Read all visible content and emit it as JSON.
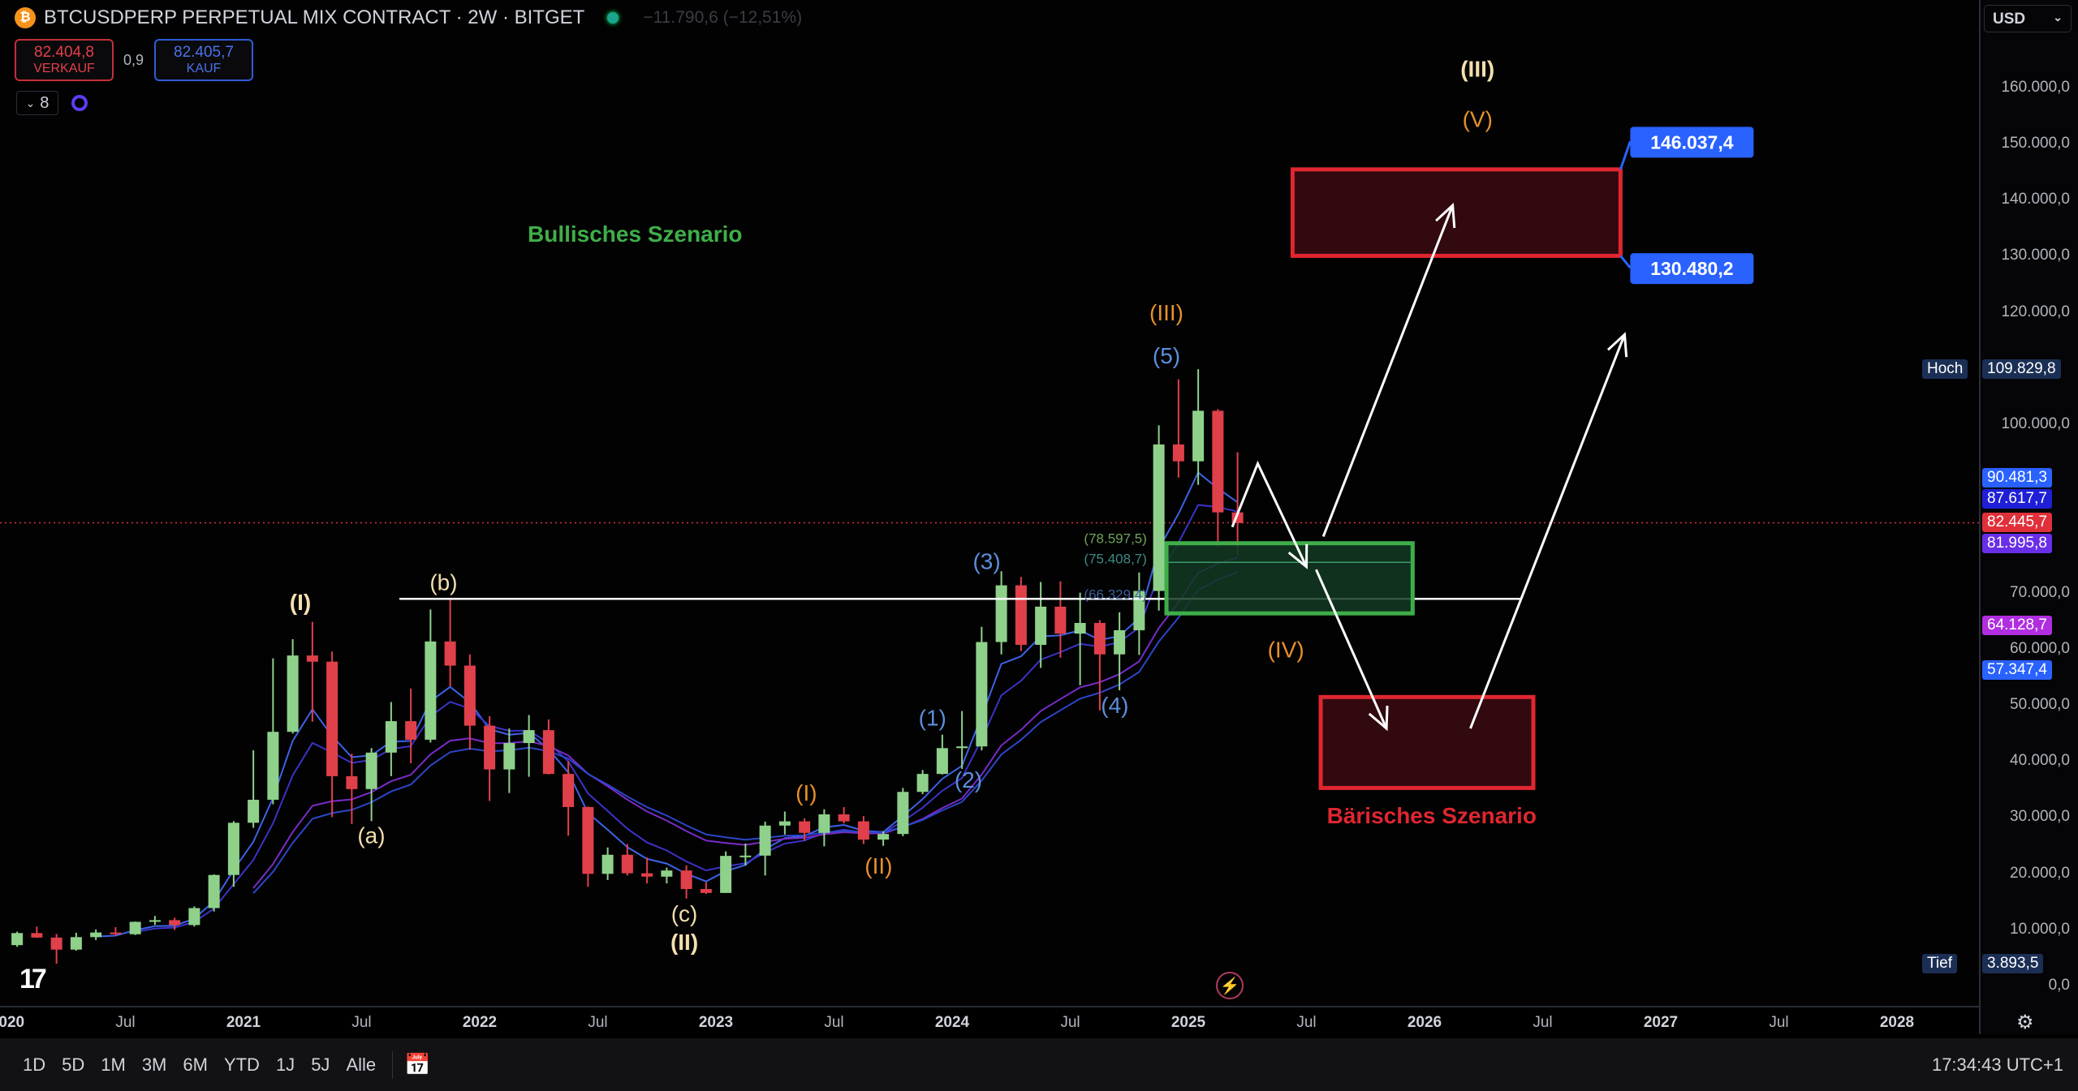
{
  "header": {
    "symbol_icon": "bitcoin-icon",
    "title": "BTCUSDPERP PERPETUAL MIX CONTRACT · 2W · BITGET",
    "change": "−11.790,6 (−12,51%)",
    "sell_price": "82.404,8",
    "sell_label": "VERKAUF",
    "spread": "0,9",
    "buy_price": "82.405,7",
    "buy_label": "KAUF",
    "indicators_count": "8"
  },
  "currency": "USD",
  "bottom": {
    "ranges": [
      "1D",
      "5D",
      "1M",
      "3M",
      "6M",
      "YTD",
      "1J",
      "5J",
      "Alle"
    ],
    "clock": "17:34:43 UTC+1"
  },
  "colors": {
    "up": "#8fd18a",
    "down": "#e0404a",
    "bull": "#3fae49",
    "bear": "#e02630",
    "orange": "#e8902a",
    "cream": "#f3dfae",
    "wave_blue": "#5b8fdc"
  },
  "chart_data": {
    "type": "candlestick",
    "ylim": [
      0,
      160000
    ],
    "xlim": [
      "2020-01",
      "2028-02"
    ],
    "y_ticks": [
      {
        "v": 160000,
        "t": "160.000,0"
      },
      {
        "v": 150000,
        "t": "150.000,0"
      },
      {
        "v": 140000,
        "t": "140.000,0"
      },
      {
        "v": 130000,
        "t": "130.000,0"
      },
      {
        "v": 120000,
        "t": "120.000,0"
      },
      {
        "v": 100000,
        "t": "100.000,0"
      },
      {
        "v": 70000,
        "t": "70.000,0"
      },
      {
        "v": 60000,
        "t": "60.000,0"
      },
      {
        "v": 50000,
        "t": "50.000,0"
      },
      {
        "v": 40000,
        "t": "40.000,0"
      },
      {
        "v": 30000,
        "t": "30.000,0"
      },
      {
        "v": 20000,
        "t": "20.000,0"
      },
      {
        "v": 10000,
        "t": "10.000,0"
      },
      {
        "v": 0,
        "t": "0,0"
      }
    ],
    "x_ticks": [
      {
        "d": "2020-01-01",
        "t": "2020",
        "year": true
      },
      {
        "d": "2020-07-01",
        "t": "Jul"
      },
      {
        "d": "2021-01-01",
        "t": "2021",
        "year": true
      },
      {
        "d": "2021-07-01",
        "t": "Jul"
      },
      {
        "d": "2022-01-01",
        "t": "2022",
        "year": true
      },
      {
        "d": "2022-07-01",
        "t": "Jul"
      },
      {
        "d": "2023-01-01",
        "t": "2023",
        "year": true
      },
      {
        "d": "2023-07-01",
        "t": "Jul"
      },
      {
        "d": "2024-01-01",
        "t": "2024",
        "year": true
      },
      {
        "d": "2024-07-01",
        "t": "Jul"
      },
      {
        "d": "2025-01-01",
        "t": "2025",
        "year": true
      },
      {
        "d": "2025-07-01",
        "t": "Jul"
      },
      {
        "d": "2026-01-01",
        "t": "2026",
        "year": true
      },
      {
        "d": "2026-07-01",
        "t": "Jul"
      },
      {
        "d": "2027-01-01",
        "t": "2027",
        "year": true
      },
      {
        "d": "2027-07-01",
        "t": "Jul"
      },
      {
        "d": "2028-01-01",
        "t": "2028",
        "year": true
      }
    ],
    "price_labels": [
      {
        "v": 109829.8,
        "t": "109.829,8",
        "tag": "Hoch",
        "color": "#1b2f55"
      },
      {
        "v": 90481.3,
        "t": "90.481,3",
        "color": "#2962ff"
      },
      {
        "v": 87617.7,
        "t": "87.617,7",
        "color": "#1f1fd8"
      },
      {
        "v": 82445.7,
        "t": "82.445,7",
        "color": "#e0303a"
      },
      {
        "v": 81995.8,
        "t": "81.995,8",
        "color": "#6a2ee8"
      },
      {
        "v": 64128.7,
        "t": "64.128,7",
        "color": "#b02ee0"
      },
      {
        "v": 57347.4,
        "t": "57.347,4",
        "color": "#2962ff"
      },
      {
        "v": 3893.5,
        "t": "3.893,5",
        "tag": "Tief",
        "color": "#1b2f55"
      }
    ],
    "current_price": 82445.7,
    "candles": [
      [
        "2020-01",
        7200,
        9600,
        6900,
        9350
      ],
      [
        "2020-02",
        9350,
        10500,
        8500,
        8550
      ],
      [
        "2020-03",
        8550,
        9200,
        3900,
        6400
      ],
      [
        "2020-04",
        6400,
        9400,
        6200,
        8630
      ],
      [
        "2020-05",
        8630,
        10000,
        8100,
        9450
      ],
      [
        "2020-06",
        9450,
        10400,
        8900,
        9140
      ],
      [
        "2020-07",
        9140,
        11400,
        9000,
        11350
      ],
      [
        "2020-08",
        11350,
        12400,
        10800,
        11650
      ],
      [
        "2020-09",
        11650,
        12100,
        9900,
        10780
      ],
      [
        "2020-10",
        10780,
        14100,
        10500,
        13800
      ],
      [
        "2020-11",
        13800,
        19800,
        13200,
        19700
      ],
      [
        "2020-12",
        19700,
        29300,
        17600,
        29000
      ],
      [
        "2021-01",
        29000,
        41900,
        28100,
        33100
      ],
      [
        "2021-02",
        33100,
        58300,
        32300,
        45200
      ],
      [
        "2021-03",
        45200,
        61700,
        44900,
        58800
      ],
      [
        "2021-04",
        58800,
        64800,
        47000,
        57700
      ],
      [
        "2021-05",
        57700,
        59500,
        30000,
        37300
      ],
      [
        "2021-06",
        37300,
        41300,
        28800,
        35000
      ],
      [
        "2021-07",
        35000,
        42300,
        29300,
        41500
      ],
      [
        "2021-08",
        41500,
        50500,
        37300,
        47100
      ],
      [
        "2021-09",
        47100,
        52900,
        39600,
        43800
      ],
      [
        "2021-10",
        43800,
        67000,
        43300,
        61300
      ],
      [
        "2021-11",
        61300,
        69000,
        53300,
        57000
      ],
      [
        "2021-12",
        57000,
        59000,
        42000,
        46300
      ],
      [
        "2022-01",
        46300,
        48000,
        32900,
        38500
      ],
      [
        "2022-02",
        38500,
        45800,
        34300,
        43200
      ],
      [
        "2022-03",
        43200,
        48200,
        37200,
        45500
      ],
      [
        "2022-04",
        45500,
        47400,
        37600,
        37700
      ],
      [
        "2022-05",
        37700,
        40000,
        26700,
        31800
      ],
      [
        "2022-06",
        31800,
        31900,
        17600,
        19900
      ],
      [
        "2022-07",
        19900,
        24600,
        18800,
        23300
      ],
      [
        "2022-08",
        23300,
        25200,
        19600,
        20000
      ],
      [
        "2022-09",
        20000,
        22800,
        18200,
        19400
      ],
      [
        "2022-10",
        19400,
        21000,
        18200,
        20500
      ],
      [
        "2022-11",
        20500,
        21400,
        15500,
        17200
      ],
      [
        "2022-12",
        17200,
        18400,
        16300,
        16500
      ],
      [
        "2023-01",
        16500,
        23900,
        16500,
        23100
      ],
      [
        "2023-02",
        23100,
        25300,
        21400,
        23150
      ],
      [
        "2023-03",
        23150,
        29200,
        19600,
        28500
      ],
      [
        "2023-04",
        28500,
        31000,
        26900,
        29250
      ],
      [
        "2023-05",
        29250,
        29800,
        25800,
        27200
      ],
      [
        "2023-06",
        27200,
        31400,
        24800,
        30500
      ],
      [
        "2023-07",
        30500,
        31800,
        28900,
        29250
      ],
      [
        "2023-08",
        29250,
        30200,
        25200,
        26000
      ],
      [
        "2023-09",
        26000,
        27500,
        24900,
        27000
      ],
      [
        "2023-10",
        27000,
        35200,
        26600,
        34500
      ],
      [
        "2023-11",
        34500,
        38400,
        34100,
        37700
      ],
      [
        "2023-12",
        37700,
        44700,
        37600,
        42300
      ],
      [
        "2024-01",
        42300,
        48900,
        38600,
        42600
      ],
      [
        "2024-02",
        42600,
        63900,
        41900,
        61200
      ],
      [
        "2024-03",
        61200,
        73800,
        59000,
        71300
      ],
      [
        "2024-04",
        71300,
        72800,
        59600,
        60700
      ],
      [
        "2024-05",
        60700,
        71900,
        56600,
        67500
      ],
      [
        "2024-06",
        67500,
        72000,
        58400,
        62700
      ],
      [
        "2024-07",
        62700,
        70000,
        53500,
        64600
      ],
      [
        "2024-08",
        64600,
        65100,
        49000,
        59000
      ],
      [
        "2024-09",
        59000,
        66500,
        52600,
        63300
      ],
      [
        "2024-10",
        63300,
        73600,
        58900,
        70300
      ],
      [
        "2024-11",
        70300,
        99800,
        66800,
        96400
      ],
      [
        "2024-12",
        96400,
        108000,
        90500,
        93400
      ],
      [
        "2025-01",
        93400,
        109800,
        89200,
        102400
      ],
      [
        "2025-02",
        102400,
        102700,
        78200,
        84300
      ],
      [
        "2025-03",
        84300,
        95000,
        76600,
        82400
      ]
    ],
    "moving_averages": [
      {
        "periods": 4,
        "color": "#3d62e6"
      },
      {
        "periods": 6,
        "color": "#3b33c8"
      },
      {
        "periods": 12,
        "color": "#7a2bc8"
      },
      {
        "periods": 14,
        "color": "#2c46c8"
      }
    ],
    "hline": {
      "value": 68900,
      "from": "2021-08-29",
      "to": "2026-05-27",
      "color": "#ffffff"
    },
    "zones": [
      {
        "from": "2025-06-10",
        "to": "2026-10-30",
        "top": 145400,
        "bottom": 130000,
        "color": "#e02630",
        "fill": "#3a0a12",
        "labels": [
          {
            "text": "146.037,4",
            "v": 146037.4
          },
          {
            "text": "130.480,2",
            "v": 130480.2
          }
        ]
      },
      {
        "from": "2024-11-28",
        "to": "2025-12-13",
        "top": 78800,
        "bottom": 66300,
        "mid": 75400,
        "color": "#3fae49",
        "fill": "#123a22"
      },
      {
        "from": "2025-07-23",
        "to": "2026-06-17",
        "top": 51400,
        "bottom": 35200,
        "color": "#e02630",
        "fill": "#3a0a12"
      }
    ],
    "arrows": [
      [
        [
          "2025-03-08",
          81700
        ],
        [
          "2025-04-17",
          93000
        ],
        [
          "2025-07-01",
          74600
        ]
      ],
      [
        [
          "2025-07-27",
          80000
        ],
        [
          "2026-02-14",
          139000
        ]
      ],
      [
        [
          "2025-07-16",
          74100
        ],
        [
          "2025-11-03",
          45800
        ]
      ],
      [
        [
          "2026-03-11",
          45800
        ],
        [
          "2026-11-06",
          116000
        ]
      ]
    ],
    "annotations": [
      {
        "text": "(I)",
        "d": "2021-03-28",
        "v": 68000,
        "c": "cream",
        "bold": true
      },
      {
        "text": "(b)",
        "d": "2021-11-06",
        "v": 71500,
        "c": "cream"
      },
      {
        "text": "(a)",
        "d": "2021-07-16",
        "v": 26400,
        "c": "cream"
      },
      {
        "text": "(c)",
        "d": "2022-11-13",
        "v": 12500,
        "c": "cream"
      },
      {
        "text": "(II)",
        "d": "2022-11-13",
        "v": 8000,
        "c": "cream",
        "bold": true
      },
      {
        "text": "(I)",
        "d": "2023-05-19",
        "v": 34000,
        "c": "orange"
      },
      {
        "text": "(II)",
        "d": "2023-09-09",
        "v": 21000,
        "c": "orange"
      },
      {
        "text": "(1)",
        "d": "2023-12-01",
        "v": 47400,
        "c": "wave_blue"
      },
      {
        "text": "(2)",
        "d": "2024-01-26",
        "v": 36300,
        "c": "wave_blue"
      },
      {
        "text": "(3)",
        "d": "2024-02-24",
        "v": 75300,
        "c": "wave_blue"
      },
      {
        "text": "(4)",
        "d": "2024-09-09",
        "v": 49600,
        "c": "wave_blue"
      },
      {
        "text": "(5)",
        "d": "2024-11-28",
        "v": 111900,
        "c": "wave_blue"
      },
      {
        "text": "(III)",
        "d": "2024-11-28",
        "v": 119600,
        "c": "orange"
      },
      {
        "text": "(IV)",
        "d": "2025-05-30",
        "v": 59500,
        "c": "orange"
      },
      {
        "text": "(III)",
        "d": "2026-03-22",
        "v": 163000,
        "c": "cream",
        "bold": true
      },
      {
        "text": "(V)",
        "d": "2026-03-22",
        "v": 154000,
        "c": "orange"
      },
      {
        "text": "Bullisches Szenario",
        "d": "2022-08-28",
        "v": 133600,
        "c": "bull",
        "bold": true,
        "size": 28
      },
      {
        "text": "Bärisches Szenario",
        "d": "2026-01-12",
        "v": 30000,
        "c": "bear",
        "bold": true,
        "size": 28
      },
      {
        "text": "(78.597,5)",
        "d": "2024-09-10",
        "v": 79500,
        "c": "#6fa35a",
        "size": 17
      },
      {
        "text": "(75.408,7)",
        "d": "2024-09-10",
        "v": 75900,
        "c": "#3e8a84",
        "size": 17
      },
      {
        "text": "(66.329,4)",
        "d": "2024-09-10",
        "v": 69500,
        "c": "#3c5f9a",
        "size": 17
      }
    ]
  }
}
